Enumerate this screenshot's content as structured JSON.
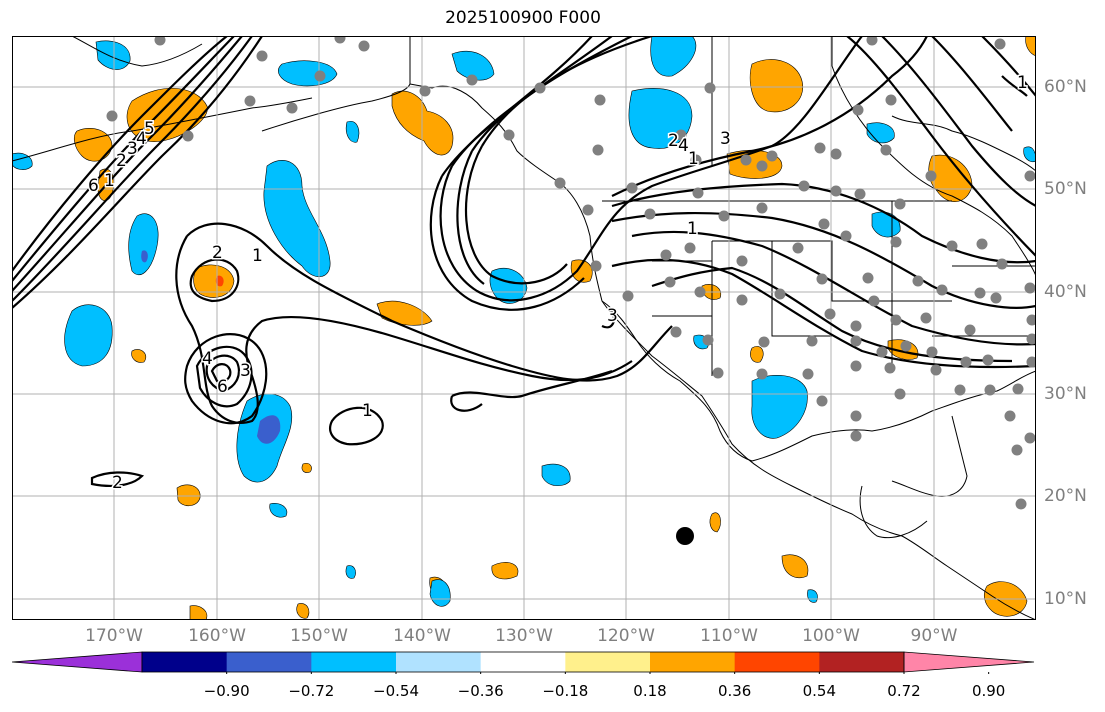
{
  "title": "2025100900 F000",
  "lon_labels": [
    "170°W",
    "160°W",
    "150°W",
    "140°W",
    "130°W",
    "120°W",
    "110°W",
    "100°W",
    "90°W"
  ],
  "lat_labels": [
    "60°N",
    "50°N",
    "40°N",
    "30°N",
    "20°N",
    "10°N"
  ],
  "colorbar": {
    "ticks": [
      "−0.90",
      "−0.72",
      "−0.54",
      "−0.36",
      "−0.18",
      "0.18",
      "0.36",
      "0.54",
      "0.72",
      "0.90"
    ],
    "colors": [
      "#9b30d9",
      "#00008b",
      "#3a5fcd",
      "#00bfff",
      "#b0e2ff",
      "#ffffff",
      "#fff08c",
      "#ffa500",
      "#ff4500",
      "#b22222",
      "#ff85a8"
    ]
  },
  "contour_labels": [
    "1",
    "2",
    "3",
    "4",
    "5",
    "6",
    "1",
    "2",
    "3",
    "4",
    "6",
    "1",
    "2",
    "3",
    "4",
    "1",
    "1",
    "3",
    "2",
    "1"
  ],
  "colors": {
    "positive_fill": "#ffa500",
    "negative_fill": "#00bfff",
    "station": "#808080",
    "grid": "#b0b0b0"
  }
}
